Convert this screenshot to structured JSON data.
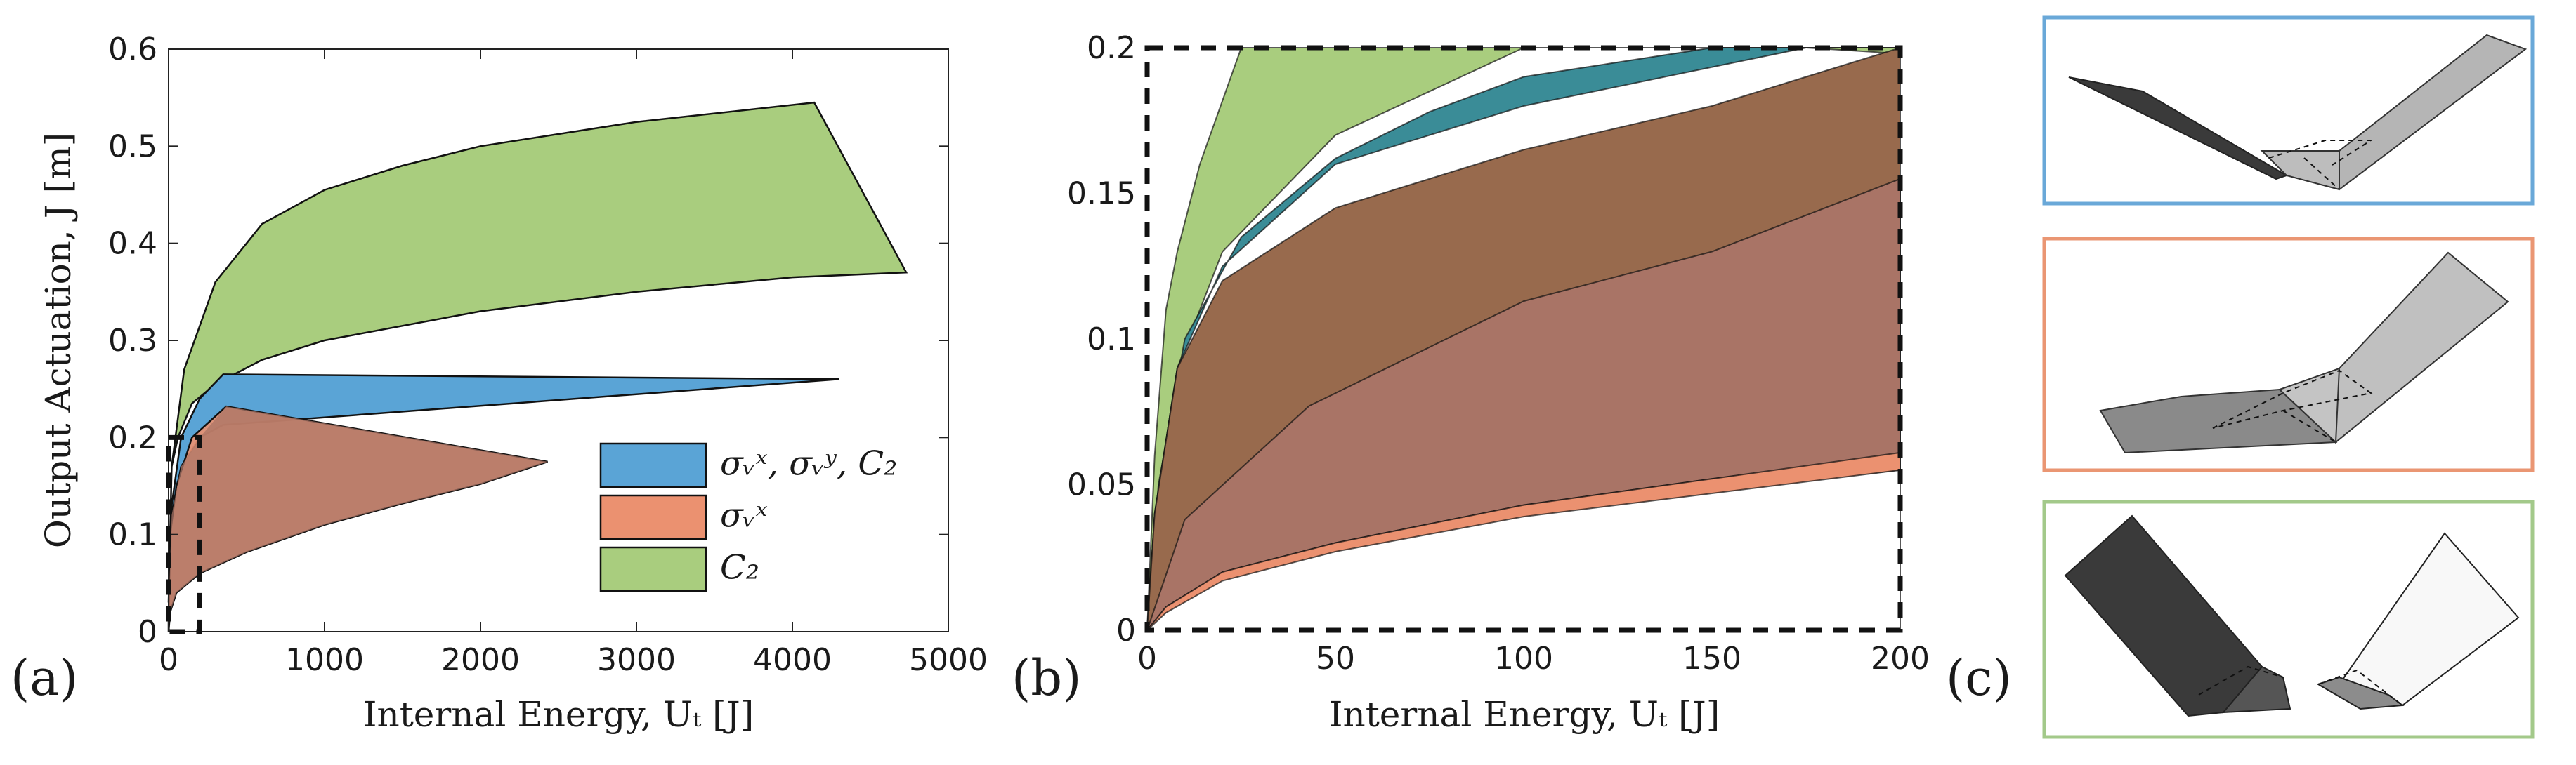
{
  "colors": {
    "green": "#a9cd7e",
    "blue": "#5aa4d6",
    "orange": "#eb9170",
    "teal": "#3a8c97",
    "brown": "#986a4d",
    "rose": "#a97466",
    "panel1_border": "#6aa8d8",
    "panel2_border": "#ea9673",
    "panel3_border": "#a3c98a"
  },
  "panel_labels": {
    "a": "(a)",
    "b": "(b)",
    "c": "(c)"
  },
  "chart_data": [
    {
      "id": "a",
      "type": "area",
      "title": "",
      "xlabel": "Internal Energy, Uₜ [J]",
      "ylabel": "Output Actuation, J [m]",
      "xlim": [
        0,
        5000
      ],
      "ylim": [
        0,
        0.6
      ],
      "xticks": [
        0,
        1000,
        2000,
        3000,
        4000,
        5000
      ],
      "xtick_labels": [
        "0",
        "1000",
        "2000",
        "3000",
        "4000",
        "5000"
      ],
      "yticks": [
        0,
        0.1,
        0.2,
        0.3,
        0.4,
        0.5,
        0.6
      ],
      "ytick_labels": [
        "0",
        "0.1",
        "0.2",
        "0.3",
        "0.4",
        "0.5",
        "0.6"
      ],
      "legend": {
        "position": "bottom-right",
        "entries": [
          {
            "label": "σᵥˣ,  σᵥʸ,  C₂",
            "color_key": "blue"
          },
          {
            "label": "σᵥˣ",
            "color_key": "orange"
          },
          {
            "label": "C₂",
            "color_key": "green"
          }
        ]
      },
      "zoom_box": {
        "x": [
          0,
          200
        ],
        "y": [
          0,
          0.2
        ]
      },
      "series": [
        {
          "name": "C₂",
          "color_key": "green",
          "upper": [
            [
              0,
              0.03
            ],
            [
              20,
              0.17
            ],
            [
              100,
              0.27
            ],
            [
              300,
              0.36
            ],
            [
              600,
              0.42
            ],
            [
              1000,
              0.455
            ],
            [
              1500,
              0.48
            ],
            [
              2000,
              0.5
            ],
            [
              3000,
              0.525
            ],
            [
              4140,
              0.545
            ]
          ],
          "right_edge": [
            [
              4140,
              0.545
            ],
            [
              4730,
              0.37
            ]
          ],
          "lower": [
            [
              4730,
              0.37
            ],
            [
              4000,
              0.365
            ],
            [
              3000,
              0.35
            ],
            [
              2000,
              0.33
            ],
            [
              1000,
              0.3
            ],
            [
              600,
              0.28
            ],
            [
              300,
              0.255
            ],
            [
              150,
              0.235
            ],
            [
              60,
              0.2
            ],
            [
              20,
              0.17
            ],
            [
              0,
              0.03
            ]
          ]
        },
        {
          "name": "σᵥˣ, σᵥʸ, C₂",
          "color_key": "blue",
          "upper": [
            [
              0,
              0.02
            ],
            [
              20,
              0.13
            ],
            [
              80,
              0.2
            ],
            [
              200,
              0.24
            ],
            [
              350,
              0.265
            ],
            [
              4300,
              0.26
            ]
          ],
          "right_edge": [],
          "lower": [
            [
              4300,
              0.26
            ],
            [
              350,
              0.213
            ],
            [
              200,
              0.2
            ],
            [
              80,
              0.17
            ],
            [
              20,
              0.12
            ],
            [
              0,
              0.02
            ]
          ]
        },
        {
          "name": "σᵥˣ",
          "color_key": "orange",
          "upper": [
            [
              0,
              0.015
            ],
            [
              10,
              0.1
            ],
            [
              50,
              0.15
            ],
            [
              150,
              0.2
            ],
            [
              370,
              0.232
            ],
            [
              2430,
              0.175
            ]
          ],
          "right_edge": [],
          "lower": [
            [
              2430,
              0.175
            ],
            [
              2000,
              0.152
            ],
            [
              1500,
              0.132
            ],
            [
              1000,
              0.11
            ],
            [
              500,
              0.082
            ],
            [
              200,
              0.06
            ],
            [
              50,
              0.04
            ],
            [
              10,
              0.02
            ],
            [
              0,
              0.0
            ]
          ]
        }
      ]
    },
    {
      "id": "b",
      "type": "area",
      "title": "",
      "xlabel": "Internal Energy, Uₜ [J]",
      "ylabel": "",
      "xlim": [
        0,
        200
      ],
      "ylim": [
        0,
        0.2
      ],
      "xticks": [
        0,
        50,
        100,
        150,
        200
      ],
      "xtick_labels": [
        "0",
        "50",
        "100",
        "150",
        "200"
      ],
      "yticks": [
        0,
        0.05,
        0.1,
        0.15,
        0.2
      ],
      "ytick_labels": [
        "0",
        "0.05",
        "0.1",
        "0.15",
        "0.2"
      ],
      "dashed_frame": true,
      "series": [
        {
          "name": "C₂",
          "color_key": "green",
          "polygon": [
            [
              0,
              0
            ],
            [
              2,
              0.06
            ],
            [
              5,
              0.11
            ],
            [
              8,
              0.13
            ],
            [
              14,
              0.16
            ],
            [
              25,
              0.2
            ],
            [
              200,
              0.2
            ],
            [
              200,
              0.2
            ],
            [
              200,
              0.198
            ],
            [
              175,
              0.2
            ],
            [
              100,
              0.2
            ],
            [
              50,
              0.17
            ],
            [
              20,
              0.13
            ],
            [
              8,
              0.09
            ],
            [
              2,
              0.04
            ],
            [
              0,
              0
            ]
          ]
        },
        {
          "name": "σᵥˣ, σᵥʸ, C₂",
          "color_key": "teal",
          "polygon": [
            [
              0,
              0
            ],
            [
              3,
              0.05
            ],
            [
              10,
              0.1
            ],
            [
              25,
              0.135
            ],
            [
              50,
              0.162
            ],
            [
              75,
              0.178
            ],
            [
              100,
              0.19
            ],
            [
              150,
              0.2
            ],
            [
              200,
              0.2
            ],
            [
              200,
              0.2
            ],
            [
              175,
              0.2
            ],
            [
              100,
              0.18
            ],
            [
              50,
              0.16
            ],
            [
              20,
              0.125
            ],
            [
              8,
              0.09
            ],
            [
              2,
              0.04
            ],
            [
              0,
              0
            ]
          ]
        },
        {
          "name": "σᵥˣ (brown)",
          "color_key": "brown",
          "polygon": [
            [
              0,
              0
            ],
            [
              2,
              0.04
            ],
            [
              8,
              0.09
            ],
            [
              20,
              0.12
            ],
            [
              50,
              0.145
            ],
            [
              100,
              0.165
            ],
            [
              150,
              0.18
            ],
            [
              175,
              0.19
            ],
            [
              200,
              0.2
            ],
            [
              200,
              0.0
            ],
            [
              200,
              0.055
            ],
            [
              150,
              0.048
            ],
            [
              100,
              0.04
            ],
            [
              50,
              0.03
            ],
            [
              20,
              0.02
            ],
            [
              5,
              0.008
            ],
            [
              0,
              0
            ]
          ]
        },
        {
          "name": "σᵥˣ (rose)",
          "color_key": "rose",
          "polygon": [
            [
              0,
              0
            ],
            [
              10,
              0.038
            ],
            [
              43,
              0.077
            ],
            [
              100,
              0.113
            ],
            [
              150,
              0.13
            ],
            [
              200,
              0.155
            ],
            [
              200,
              0.06
            ],
            [
              150,
              0.052
            ],
            [
              100,
              0.043
            ],
            [
              50,
              0.03
            ],
            [
              20,
              0.02
            ],
            [
              5,
              0.008
            ],
            [
              0,
              0
            ]
          ]
        },
        {
          "name": "σᵥˣ (orange strip)",
          "color_key": "orange",
          "polygon": [
            [
              0,
              0
            ],
            [
              5,
              0.008
            ],
            [
              20,
              0.02
            ],
            [
              50,
              0.03
            ],
            [
              100,
              0.043
            ],
            [
              150,
              0.052
            ],
            [
              200,
              0.061
            ],
            [
              200,
              0.055
            ],
            [
              150,
              0.047
            ],
            [
              100,
              0.039
            ],
            [
              50,
              0.027
            ],
            [
              20,
              0.017
            ],
            [
              5,
              0.006
            ],
            [
              0,
              0
            ]
          ]
        }
      ]
    }
  ]
}
